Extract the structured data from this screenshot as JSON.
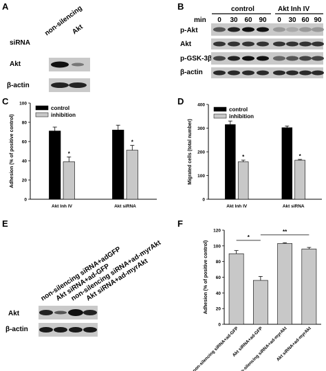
{
  "panels": {
    "a": {
      "letter": "A",
      "row_header": "siRNA",
      "columns": [
        "non-silencing",
        "Akt"
      ],
      "rows": [
        "Akt",
        "β-actin"
      ]
    },
    "b": {
      "letter": "B",
      "group_left": "control",
      "group_right": "Akt Inh IV",
      "time_label": "min",
      "times": [
        "0",
        "30",
        "60",
        "90",
        "0",
        "30",
        "60",
        "90"
      ],
      "rows": [
        "p-Akt",
        "Akt",
        "p-GSK-3β",
        "β-actin"
      ]
    },
    "e": {
      "letter": "E",
      "columns": [
        "non-silencing siRNA+adGFP",
        "Akt siRNA+ad-GFP",
        "non-silencing siRNA+ad-myrAkt",
        "Akt siRNA+ad-myrAkt"
      ],
      "rows": [
        "Akt",
        "β-actin"
      ]
    }
  },
  "colors": {
    "control_bar": "#000000",
    "inhibition_bar": "#c8c8c8",
    "blot_bg": "#c9c9c9",
    "band": "#1a1a1a"
  },
  "chart_data": [
    {
      "panel": "C",
      "type": "bar",
      "ylabel": "Adhesion (% of positive control)",
      "ylim": [
        0,
        100
      ],
      "yticks": [
        "0",
        "20",
        "40",
        "60",
        "80",
        "100"
      ],
      "categories": [
        "Akt Inh IV",
        "Akt siRNA"
      ],
      "series": [
        {
          "name": "control",
          "values": [
            71,
            72
          ],
          "errors": [
            4,
            5
          ]
        },
        {
          "name": "inhibition",
          "values": [
            39,
            51
          ],
          "errors": [
            5,
            5
          ]
        }
      ],
      "annotations": [
        "*",
        "*"
      ],
      "legend": "top-left"
    },
    {
      "panel": "D",
      "type": "bar",
      "ylabel": "Migrated cells (total number)",
      "ylim": [
        0,
        400
      ],
      "yticks": [
        "0",
        "100",
        "200",
        "300",
        "400"
      ],
      "categories": [
        "Akt Inh IV",
        "Akt siRNA"
      ],
      "series": [
        {
          "name": "control",
          "values": [
            315,
            302
          ],
          "errors": [
            15,
            7
          ]
        },
        {
          "name": "inhibition",
          "values": [
            158,
            165
          ],
          "errors": [
            7,
            3
          ]
        }
      ],
      "annotations": [
        "*",
        "*"
      ],
      "legend": "top-left"
    },
    {
      "panel": "F",
      "type": "bar",
      "ylabel": "Adhesion (% of positive control)",
      "ylim": [
        0,
        120
      ],
      "yticks": [
        "0",
        "20",
        "40",
        "60",
        "80",
        "100",
        "120"
      ],
      "categories": [
        "non-silencing siRNA+ad-GFP",
        "Akt siRNA+ad-GFP",
        "non-silencing siRNA+ad-myrAkt",
        "Akt siRNA+ad-myrAkt"
      ],
      "values": [
        90,
        56,
        103,
        96
      ],
      "errors": [
        4,
        5,
        1,
        2
      ],
      "significance": [
        "*",
        "**"
      ]
    }
  ]
}
